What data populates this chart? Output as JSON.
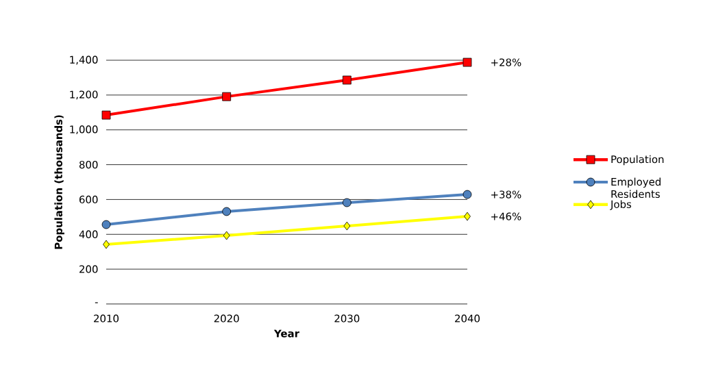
{
  "chart_data": {
    "type": "line",
    "xlabel": "Year",
    "ylabel": "Population (thousands)",
    "categories": [
      "2010",
      "2020",
      "2030",
      "2040"
    ],
    "series": [
      {
        "name": "Population",
        "color": "#ff0000",
        "marker": "square",
        "values": [
          1085,
          1191,
          1286,
          1388
        ]
      },
      {
        "name": "Employed Residents",
        "color": "#4f81bd",
        "marker": "circle",
        "values": [
          456,
          531,
          582,
          629
        ]
      },
      {
        "name": "Jobs",
        "color": "#ffff00",
        "marker": "diamond",
        "values": [
          342,
          393,
          448,
          503
        ]
      }
    ],
    "ylim": [
      0,
      1400
    ],
    "yticks": [
      {
        "value": 0,
        "label": "-"
      },
      200,
      400,
      600,
      800,
      {
        "value": 1000,
        "label": "1,000"
      },
      {
        "value": 1200,
        "label": "1,200"
      },
      {
        "value": 1400,
        "label": "1,400"
      }
    ],
    "grid": "y",
    "legend": "right",
    "line_style": "solid",
    "annotations": [
      {
        "text": "+28%",
        "x": "2040",
        "y": 1388
      },
      {
        "text": "+38%",
        "x": "2040",
        "y": 629
      },
      {
        "text": "+46%",
        "x": "2040",
        "y": 503
      }
    ]
  }
}
